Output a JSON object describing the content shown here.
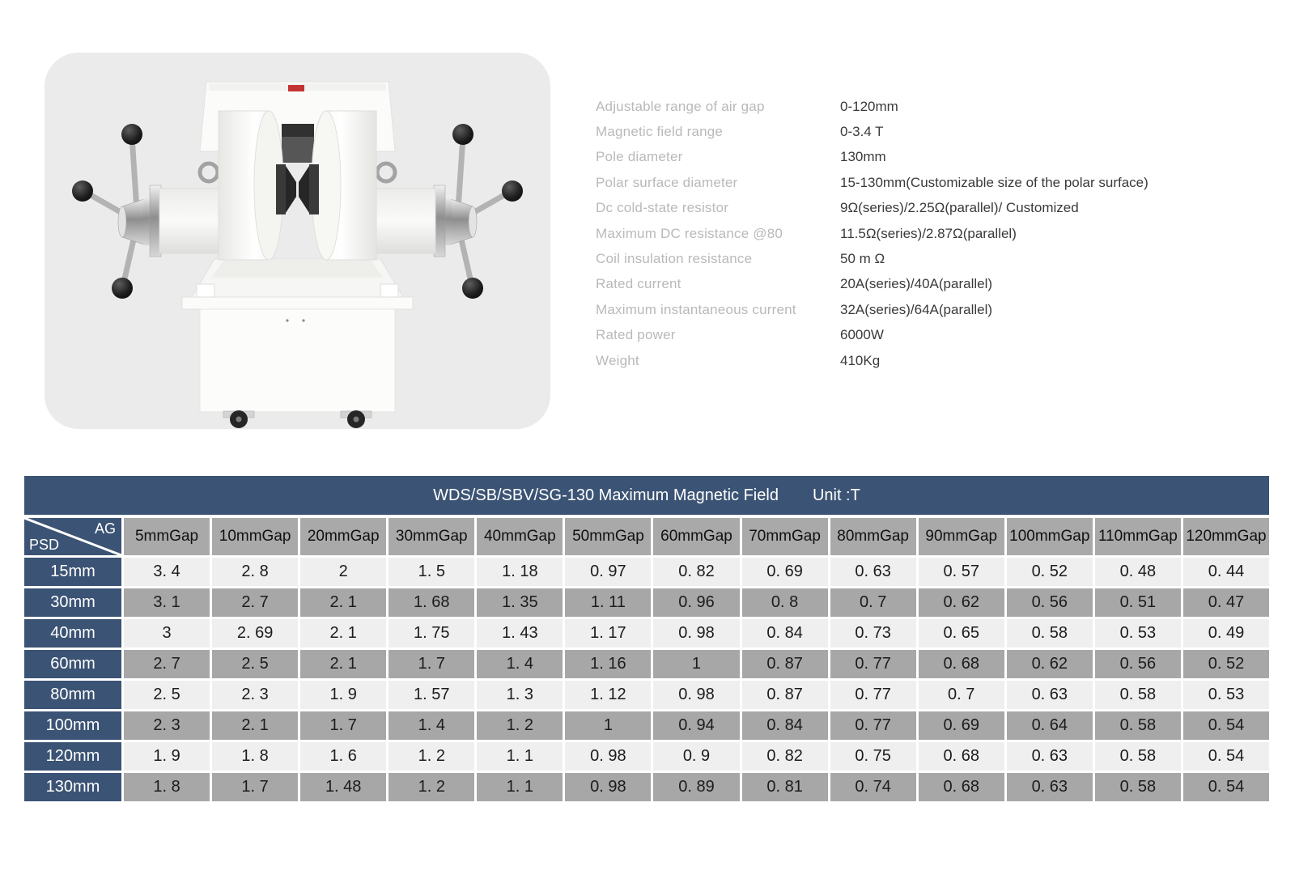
{
  "product": {
    "image_name": "electromagnet-product-photo"
  },
  "specs": [
    {
      "label": "Adjustable range of air gap",
      "value": "0-120mm"
    },
    {
      "label": "Magnetic field range",
      "value": "0-3.4 T"
    },
    {
      "label": "Pole diameter",
      "value": "130mm"
    },
    {
      "label": "Polar surface diameter",
      "value": "15-130mm(Customizable size of the polar surface)"
    },
    {
      "label": "Dc cold-state resistor",
      "value": "9Ω(series)/2.25Ω(parallel)/ Customized"
    },
    {
      "label": "Maximum DC resistance @80",
      "value": "11.5Ω(series)/2.87Ω(parallel)"
    },
    {
      "label": "Coil insulation resistance",
      "value": "50 m Ω"
    },
    {
      "label": "Rated current",
      "value": "20A(series)/40A(parallel)"
    },
    {
      "label": "Maximum instantaneous current",
      "value": "32A(series)/64A(parallel)"
    },
    {
      "label": "Rated power",
      "value": "6000W"
    },
    {
      "label": "Weight",
      "value": "410Kg"
    }
  ],
  "table": {
    "title": "WDS/SB/SBV/SG-130 Maximum Magnetic Field",
    "unit_label": "Unit :T",
    "corner": {
      "top": "AG",
      "bottom": "PSD"
    },
    "columns": [
      "5mmGap",
      "10mmGap",
      "20mmGap",
      "30mmGap",
      "40mmGap",
      "50mmGap",
      "60mmGap",
      "70mmGap",
      "80mmGap",
      "90mmGap",
      "100mmGap",
      "110mmGap",
      "120mmGap"
    ],
    "rows": [
      {
        "psd": "15mm",
        "values": [
          "3. 4",
          "2. 8",
          "2",
          "1. 5",
          "1. 18",
          "0. 97",
          "0. 82",
          "0. 69",
          "0. 63",
          "0. 57",
          "0. 52",
          "0. 48",
          "0. 44"
        ]
      },
      {
        "psd": "30mm",
        "values": [
          "3. 1",
          "2. 7",
          "2. 1",
          "1. 68",
          "1. 35",
          "1. 11",
          "0. 96",
          "0. 8",
          "0. 7",
          "0. 62",
          "0. 56",
          "0. 51",
          "0. 47"
        ]
      },
      {
        "psd": "40mm",
        "values": [
          "3",
          "2. 69",
          "2. 1",
          "1. 75",
          "1. 43",
          "1. 17",
          "0. 98",
          "0. 84",
          "0. 73",
          "0. 65",
          "0. 58",
          "0. 53",
          "0. 49"
        ]
      },
      {
        "psd": "60mm",
        "values": [
          "2. 7",
          "2. 5",
          "2. 1",
          "1. 7",
          "1. 4",
          "1. 16",
          "1",
          "0. 87",
          "0. 77",
          "0. 68",
          "0. 62",
          "0. 56",
          "0. 52"
        ]
      },
      {
        "psd": "80mm",
        "values": [
          "2. 5",
          "2. 3",
          "1. 9",
          "1. 57",
          "1. 3",
          "1. 12",
          "0. 98",
          "0. 87",
          "0. 77",
          "0. 7",
          "0. 63",
          "0. 58",
          "0. 53"
        ]
      },
      {
        "psd": "100mm",
        "values": [
          "2. 3",
          "2. 1",
          "1. 7",
          "1. 4",
          "1. 2",
          "1",
          "0. 94",
          "0. 84",
          "0. 77",
          "0. 69",
          "0. 64",
          "0. 58",
          "0. 54"
        ]
      },
      {
        "psd": "120mm",
        "values": [
          "1. 9",
          "1. 8",
          "1. 6",
          "1. 2",
          "1. 1",
          "0. 98",
          "0. 9",
          "0. 82",
          "0. 75",
          "0. 68",
          "0. 63",
          "0. 58",
          "0. 54"
        ]
      },
      {
        "psd": "130mm",
        "values": [
          "1. 8",
          "1. 7",
          "1. 48",
          "1. 2",
          "1. 1",
          "0. 98",
          "0. 89",
          "0. 81",
          "0. 74",
          "0. 68",
          "0. 63",
          "0. 58",
          "0. 54"
        ]
      }
    ]
  },
  "colors": {
    "header_blue": "#3b5374",
    "header_gray": "#a9a9a9",
    "row_light": "#efefef",
    "row_dark": "#a7a7a7",
    "card_bg": "#ebebeb"
  }
}
